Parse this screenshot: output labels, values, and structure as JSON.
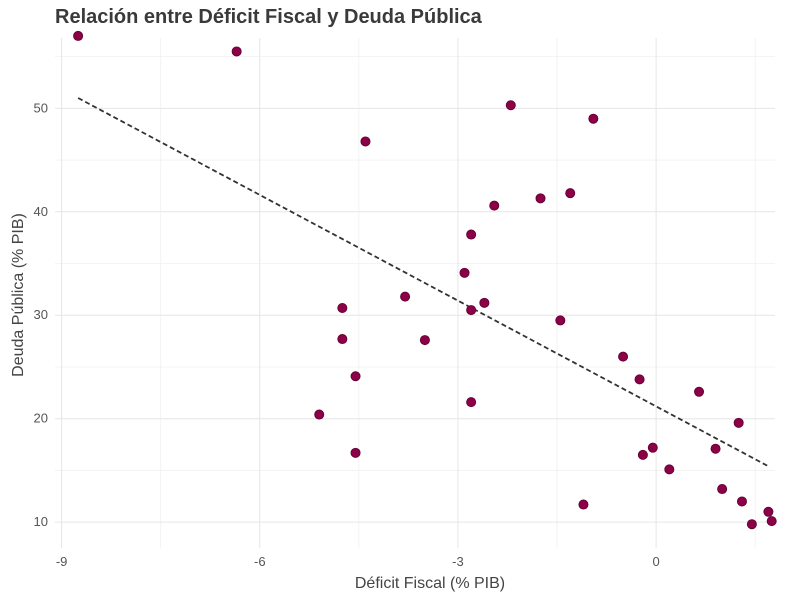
{
  "chart_data": {
    "type": "scatter",
    "title": "Relación entre Déficit Fiscal y Deuda Pública",
    "xlabel": "Déficit Fiscal (% PIB)",
    "ylabel": "Deuda Pública (% PIB)",
    "xlim": [
      -9.1,
      1.8
    ],
    "ylim": [
      7.5,
      56.8
    ],
    "x_ticks": [
      -9,
      -6,
      -3,
      0
    ],
    "x_minor_ticks": [
      -7.5,
      -4.5,
      -1.5,
      1.5
    ],
    "y_ticks": [
      10,
      20,
      30,
      40,
      50
    ],
    "y_minor_ticks": [
      15,
      25,
      35,
      45,
      55
    ],
    "grid": true,
    "point_color": "#8B0047",
    "trend_color": "#333333",
    "trend_line": {
      "x": [
        -8.75,
        1.7
      ],
      "y": [
        51.0,
        15.4
      ],
      "style": "dashed"
    },
    "points": [
      {
        "x": -8.75,
        "y": 57.0
      },
      {
        "x": -6.35,
        "y": 55.5
      },
      {
        "x": -2.2,
        "y": 50.3
      },
      {
        "x": -0.95,
        "y": 49.0
      },
      {
        "x": -4.4,
        "y": 46.8
      },
      {
        "x": -1.3,
        "y": 41.8
      },
      {
        "x": -1.75,
        "y": 41.3
      },
      {
        "x": -2.45,
        "y": 40.6
      },
      {
        "x": -2.8,
        "y": 37.8
      },
      {
        "x": -2.9,
        "y": 34.1
      },
      {
        "x": -3.8,
        "y": 31.8
      },
      {
        "x": -2.6,
        "y": 31.2
      },
      {
        "x": -4.75,
        "y": 30.7
      },
      {
        "x": -2.8,
        "y": 30.5
      },
      {
        "x": -1.45,
        "y": 29.5
      },
      {
        "x": -4.75,
        "y": 27.7
      },
      {
        "x": -3.5,
        "y": 27.6
      },
      {
        "x": -0.5,
        "y": 26.0
      },
      {
        "x": -4.55,
        "y": 24.1
      },
      {
        "x": -0.25,
        "y": 23.8
      },
      {
        "x": 0.65,
        "y": 22.6
      },
      {
        "x": -2.8,
        "y": 21.6
      },
      {
        "x": -5.1,
        "y": 20.4
      },
      {
        "x": 1.25,
        "y": 19.6
      },
      {
        "x": -0.05,
        "y": 17.2
      },
      {
        "x": 0.9,
        "y": 17.1
      },
      {
        "x": -4.55,
        "y": 16.7
      },
      {
        "x": -0.2,
        "y": 16.5
      },
      {
        "x": 0.2,
        "y": 15.1
      },
      {
        "x": 1.0,
        "y": 13.2
      },
      {
        "x": 1.3,
        "y": 12.0
      },
      {
        "x": -1.1,
        "y": 11.7
      },
      {
        "x": 1.7,
        "y": 11.0
      },
      {
        "x": 1.75,
        "y": 10.1
      },
      {
        "x": 1.45,
        "y": 9.8
      }
    ]
  }
}
